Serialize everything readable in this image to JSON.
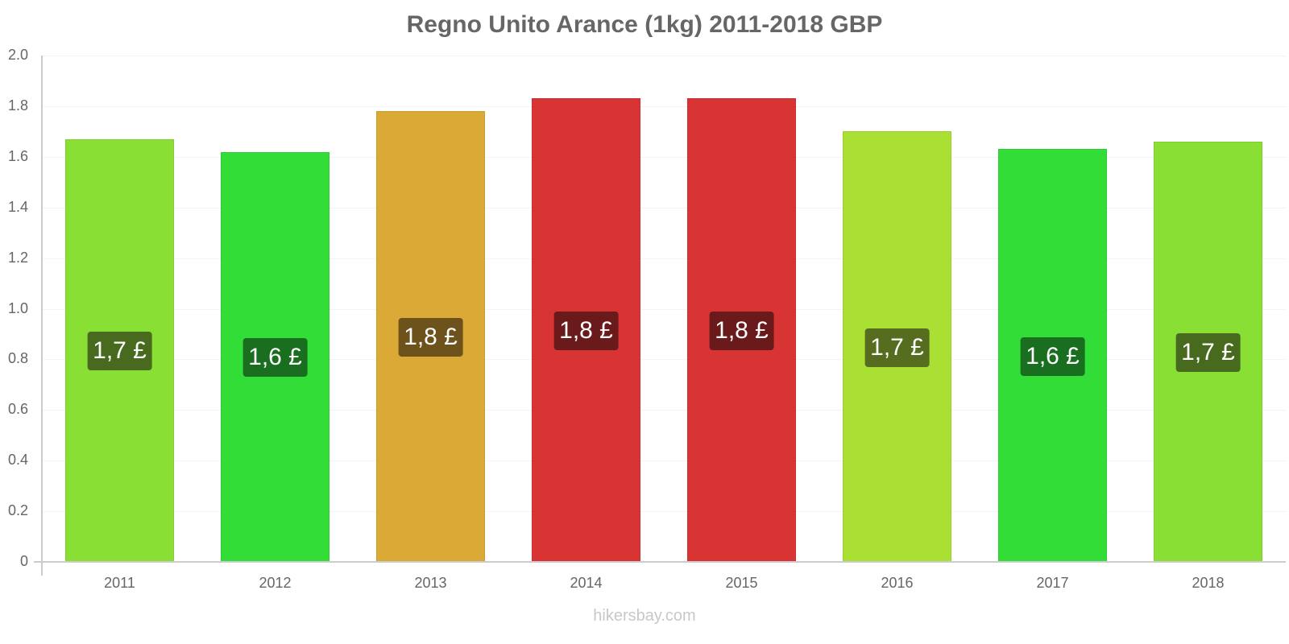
{
  "chart_data": {
    "type": "bar",
    "title": "Regno Unito Arance (1kg) 2011-2018 GBP",
    "xlabel": "",
    "ylabel": "",
    "ylim": [
      0,
      2.0
    ],
    "yticks": [
      "0",
      "0.2",
      "0.4",
      "0.6",
      "0.8",
      "1.0",
      "1.2",
      "1.4",
      "1.6",
      "1.8",
      "2.0"
    ],
    "grid": true,
    "legend": null,
    "categories": [
      "2011",
      "2012",
      "2013",
      "2014",
      "2015",
      "2016",
      "2017",
      "2018"
    ],
    "values": [
      1.67,
      1.62,
      1.78,
      1.83,
      1.83,
      1.7,
      1.63,
      1.66
    ],
    "data_labels": [
      "1,7 £",
      "1,6 £",
      "1,8 £",
      "1,8 £",
      "1,8 £",
      "1,7 £",
      "1,6 £",
      "1,7 £"
    ],
    "bar_colors": [
      "#8adf35",
      "#33dd37",
      "#dba935",
      "#d93434",
      "#d93434",
      "#aadf33",
      "#33dd37",
      "#8adf35"
    ],
    "label_bg_colors": [
      "#486a1f",
      "#1a6e1f",
      "#6d521c",
      "#6a1a1a",
      "#6a1a1a",
      "#566c1e",
      "#1a6e1f",
      "#486a1f"
    ]
  },
  "watermark": "hikersbay.com"
}
